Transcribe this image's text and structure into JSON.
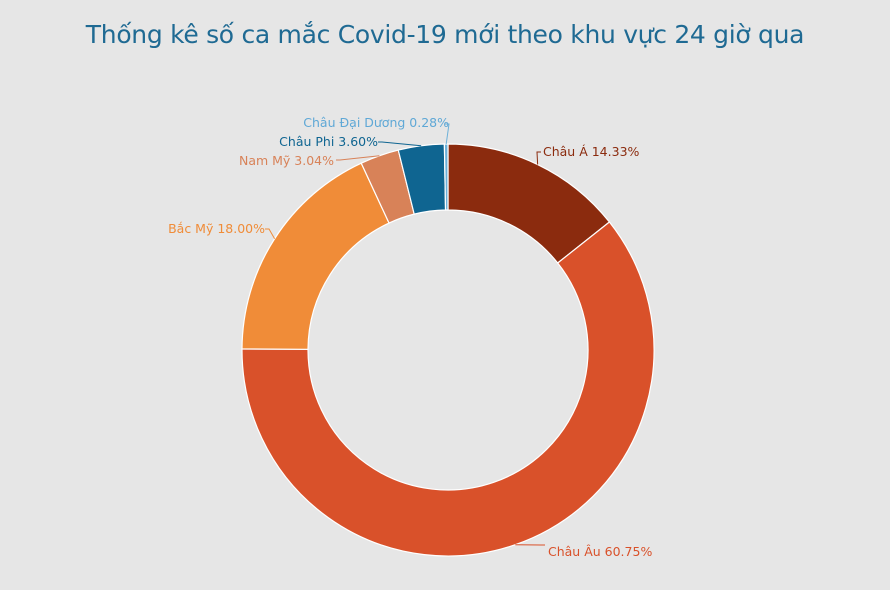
{
  "chart_data": {
    "type": "pie",
    "donut": true,
    "title": "Thống kê số ca mắc Covid-19 mới theo khu vực 24 giờ qua",
    "slices": [
      {
        "name": "Châu Á",
        "value": 14.33,
        "label": "Châu Á 14.33%",
        "color": "#8b2b0e"
      },
      {
        "name": "Châu Âu",
        "value": 60.75,
        "label": "Châu Âu 60.75%",
        "color": "#d9512a"
      },
      {
        "name": "Bắc Mỹ",
        "value": 18.0,
        "label": "Bắc Mỹ 18.00%",
        "color": "#f08c38"
      },
      {
        "name": "Nam Mỹ",
        "value": 3.04,
        "label": "Nam Mỹ 3.04%",
        "color": "#d88258"
      },
      {
        "name": "Châu Phi",
        "value": 3.6,
        "label": "Châu Phi  3.60%",
        "color": "#0f6591"
      },
      {
        "name": "Châu Đại Dương",
        "value": 0.28,
        "label": "Châu Đại Dương 0.28%",
        "color": "#6cb0d8"
      }
    ],
    "legend": "none"
  }
}
